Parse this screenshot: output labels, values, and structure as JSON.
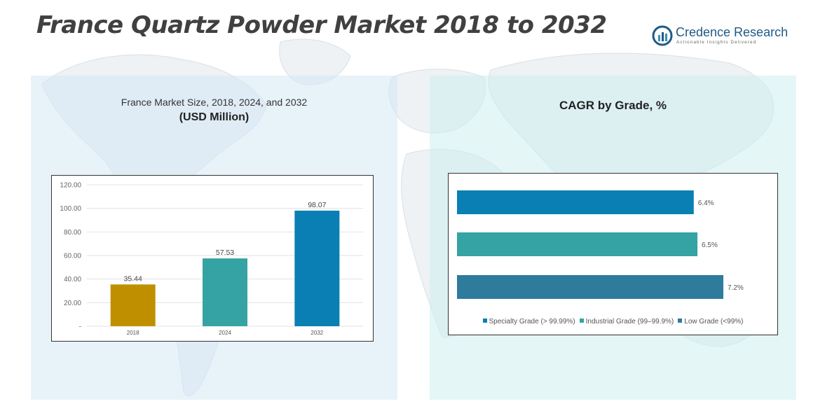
{
  "header": {
    "title": "France Quartz Powder Market 2018 to 2032"
  },
  "brand": {
    "name": "Credence Research",
    "tagline": "Actionable Insights Delivered",
    "icon": "credence-logo-icon",
    "color": "#1f5a85"
  },
  "left_panel": {
    "title_line1": "France Market Size, 2018, 2024, and 2032",
    "title_line2": "(USD Million)"
  },
  "right_panel": {
    "title": "CAGR by Grade, %"
  },
  "chart_data": [
    {
      "type": "bar",
      "title": "France Market Size, 2018, 2024, and 2032 (USD Million)",
      "categories": [
        "2018",
        "2024",
        "2032"
      ],
      "values": [
        35.44,
        57.53,
        98.07
      ],
      "value_labels": [
        "35.44",
        "57.53",
        "98.07"
      ],
      "colors": [
        "#bf8f00",
        "#35a3a3",
        "#0a7fb3"
      ],
      "ylim": [
        0,
        120
      ],
      "yticks": [
        0,
        20,
        40,
        60,
        80,
        100,
        120
      ],
      "ytick_labels": [
        "-",
        "20.00",
        "40.00",
        "60.00",
        "80.00",
        "100.00",
        "120.00"
      ],
      "grid": true,
      "xlabel": "",
      "ylabel": ""
    },
    {
      "type": "bar",
      "orientation": "horizontal",
      "title": "CAGR by Grade, %",
      "categories": [
        "Specialty Grade (> 99.99%)",
        "Industrial Grade (99–99.9%)",
        "Low Grade (<99%)"
      ],
      "values": [
        6.4,
        6.5,
        7.2
      ],
      "value_labels": [
        "6.4%",
        "6.5%",
        "7.2%"
      ],
      "colors": [
        "#0a7fb3",
        "#35a3a3",
        "#2e7b9c"
      ],
      "legend": "bottom",
      "grid": false
    }
  ]
}
